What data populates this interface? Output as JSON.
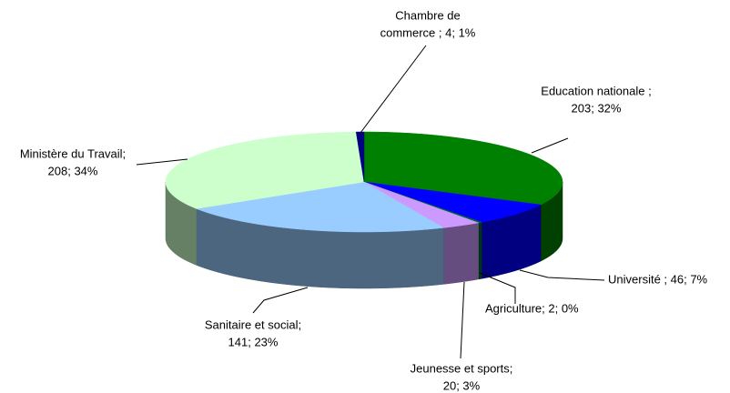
{
  "chart_data": {
    "type": "pie3d",
    "labels": [
      [
        "Education nationale ;",
        "203; 32%"
      ],
      [
        "Université ; 46; 7%"
      ],
      [
        "Agriculture; 2; 0%"
      ],
      [
        "Jeunesse et sports;",
        "20; 3%"
      ],
      [
        "Sanitaire et social;",
        "141; 23%"
      ],
      [
        "Ministère du Travail;",
        "208; 34%"
      ],
      [
        "Chambre de",
        "commerce ; 4; 1%"
      ]
    ],
    "values": [
      203,
      46,
      2,
      20,
      141,
      208,
      4
    ],
    "colors": [
      "#008000",
      "#0000ff",
      "#006633",
      "#cc99ff",
      "#99ccff",
      "#ccffcc",
      "#000080"
    ]
  }
}
